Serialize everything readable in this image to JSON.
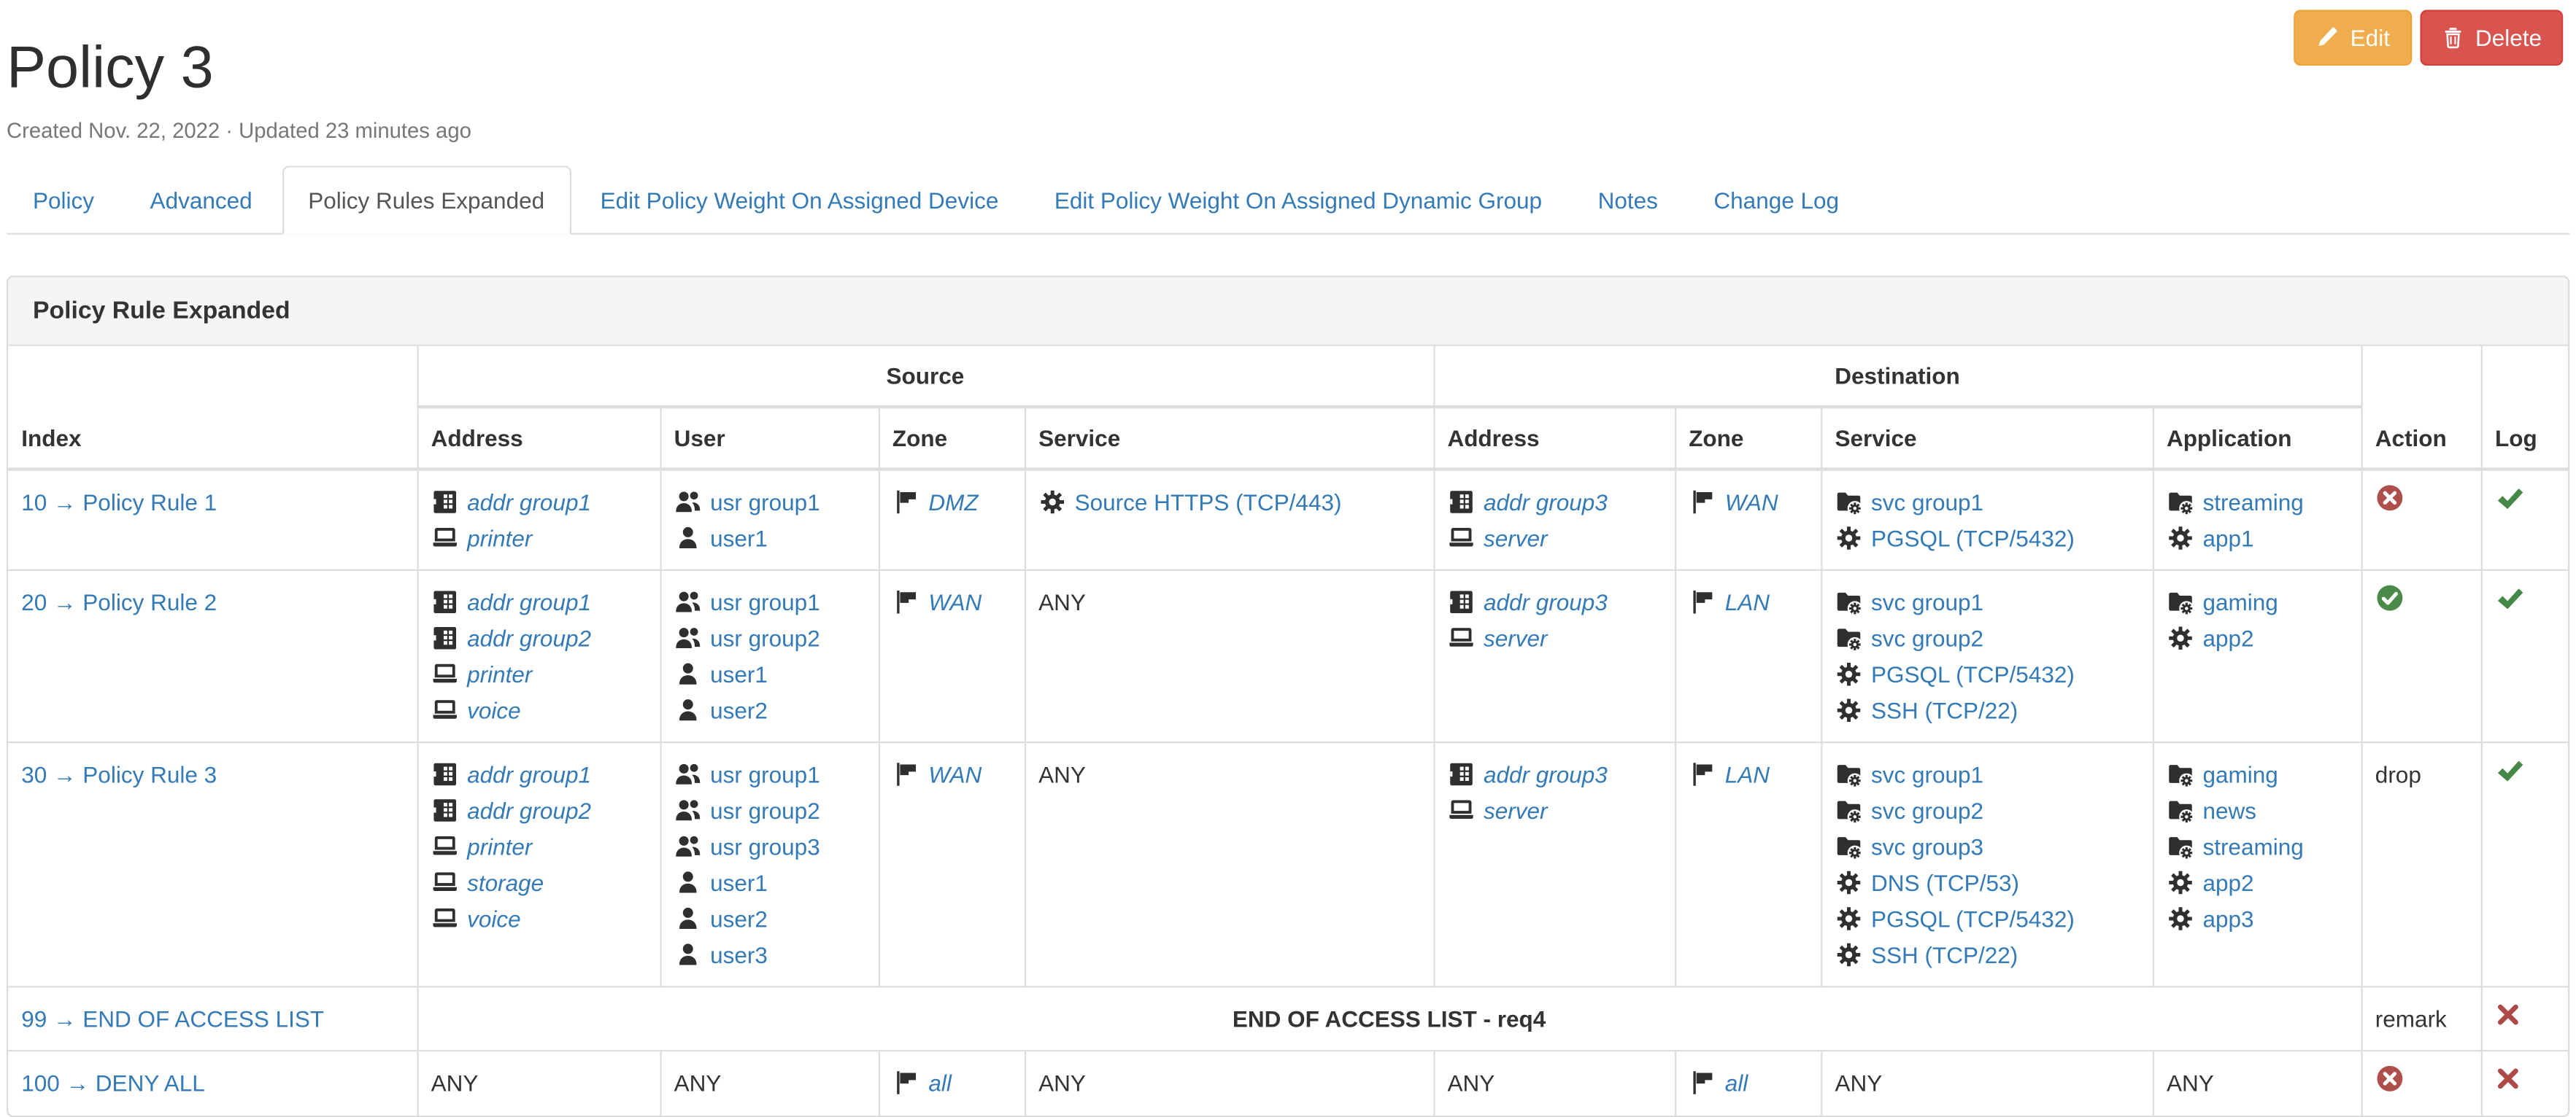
{
  "header": {
    "title": "Policy 3",
    "subtitle": "Created Nov. 22, 2022 · Updated 23 minutes ago",
    "edit_label": "Edit",
    "delete_label": "Delete"
  },
  "tabs": [
    {
      "label": "Policy",
      "active": false
    },
    {
      "label": "Advanced",
      "active": false
    },
    {
      "label": "Policy Rules Expanded",
      "active": true
    },
    {
      "label": "Edit Policy Weight On Assigned Device",
      "active": false
    },
    {
      "label": "Edit Policy Weight On Assigned Dynamic Group",
      "active": false
    },
    {
      "label": "Notes",
      "active": false
    },
    {
      "label": "Change Log",
      "active": false
    }
  ],
  "panel": {
    "title": "Policy Rule Expanded"
  },
  "table": {
    "group_headers": {
      "source": "Source",
      "destination": "Destination"
    },
    "corner_headers": {
      "index": "Index",
      "action": "Action",
      "log": "Log"
    },
    "source_columns": [
      "Address",
      "User",
      "Zone",
      "Service"
    ],
    "destination_columns": [
      "Address",
      "Zone",
      "Service",
      "Application"
    ],
    "rows": [
      {
        "type": "rule",
        "index_label": "10 → Policy Rule 1",
        "src_address": [
          {
            "t": "addr-group",
            "label": "addr group1"
          },
          {
            "t": "host",
            "label": "printer"
          }
        ],
        "src_user": [
          {
            "t": "user-group",
            "label": "usr group1"
          },
          {
            "t": "user",
            "label": "user1"
          }
        ],
        "src_zone": [
          {
            "t": "zone",
            "label": "DMZ"
          }
        ],
        "src_service": [
          {
            "t": "service",
            "label": "Source HTTPS (TCP/443)"
          }
        ],
        "dst_address": [
          {
            "t": "addr-group",
            "label": "addr group3"
          },
          {
            "t": "host",
            "label": "server"
          }
        ],
        "dst_zone": [
          {
            "t": "zone",
            "label": "WAN"
          }
        ],
        "dst_service": [
          {
            "t": "svc-group",
            "label": "svc group1"
          },
          {
            "t": "service",
            "label": "PGSQL (TCP/5432)"
          }
        ],
        "application": [
          {
            "t": "app-group",
            "label": "streaming"
          },
          {
            "t": "app",
            "label": "app1"
          }
        ],
        "action": {
          "kind": "deny"
        },
        "log": {
          "kind": "yes"
        }
      },
      {
        "type": "rule",
        "index_label": "20 → Policy Rule 2",
        "src_address": [
          {
            "t": "addr-group",
            "label": "addr group1"
          },
          {
            "t": "addr-group",
            "label": "addr group2"
          },
          {
            "t": "host",
            "label": "printer"
          },
          {
            "t": "host",
            "label": "voice"
          }
        ],
        "src_user": [
          {
            "t": "user-group",
            "label": "usr group1"
          },
          {
            "t": "user-group",
            "label": "usr group2"
          },
          {
            "t": "user",
            "label": "user1"
          },
          {
            "t": "user",
            "label": "user2"
          }
        ],
        "src_zone": [
          {
            "t": "zone",
            "label": "WAN"
          }
        ],
        "src_service": [
          {
            "t": "any"
          }
        ],
        "dst_address": [
          {
            "t": "addr-group",
            "label": "addr group3"
          },
          {
            "t": "host",
            "label": "server"
          }
        ],
        "dst_zone": [
          {
            "t": "zone",
            "label": "LAN"
          }
        ],
        "dst_service": [
          {
            "t": "svc-group",
            "label": "svc group1"
          },
          {
            "t": "svc-group",
            "label": "svc group2"
          },
          {
            "t": "service",
            "label": "PGSQL (TCP/5432)"
          },
          {
            "t": "service",
            "label": "SSH (TCP/22)"
          }
        ],
        "application": [
          {
            "t": "app-group",
            "label": "gaming"
          },
          {
            "t": "app",
            "label": "app2"
          }
        ],
        "action": {
          "kind": "accept"
        },
        "log": {
          "kind": "yes"
        }
      },
      {
        "type": "rule",
        "index_label": "30 → Policy Rule 3",
        "src_address": [
          {
            "t": "addr-group",
            "label": "addr group1"
          },
          {
            "t": "addr-group",
            "label": "addr group2"
          },
          {
            "t": "host",
            "label": "printer"
          },
          {
            "t": "host",
            "label": "storage"
          },
          {
            "t": "host",
            "label": "voice"
          }
        ],
        "src_user": [
          {
            "t": "user-group",
            "label": "usr group1"
          },
          {
            "t": "user-group",
            "label": "usr group2"
          },
          {
            "t": "user-group",
            "label": "usr group3"
          },
          {
            "t": "user",
            "label": "user1"
          },
          {
            "t": "user",
            "label": "user2"
          },
          {
            "t": "user",
            "label": "user3"
          }
        ],
        "src_zone": [
          {
            "t": "zone",
            "label": "WAN"
          }
        ],
        "src_service": [
          {
            "t": "any"
          }
        ],
        "dst_address": [
          {
            "t": "addr-group",
            "label": "addr group3"
          },
          {
            "t": "host",
            "label": "server"
          }
        ],
        "dst_zone": [
          {
            "t": "zone",
            "label": "LAN"
          }
        ],
        "dst_service": [
          {
            "t": "svc-group",
            "label": "svc group1"
          },
          {
            "t": "svc-group",
            "label": "svc group2"
          },
          {
            "t": "svc-group",
            "label": "svc group3"
          },
          {
            "t": "service",
            "label": "DNS (TCP/53)"
          },
          {
            "t": "service",
            "label": "PGSQL (TCP/5432)"
          },
          {
            "t": "service",
            "label": "SSH (TCP/22)"
          }
        ],
        "application": [
          {
            "t": "app-group",
            "label": "gaming"
          },
          {
            "t": "app-group",
            "label": "news"
          },
          {
            "t": "app-group",
            "label": "streaming"
          },
          {
            "t": "app",
            "label": "app2"
          },
          {
            "t": "app",
            "label": "app3"
          }
        ],
        "action": {
          "kind": "text",
          "label": "drop"
        },
        "log": {
          "kind": "yes"
        }
      },
      {
        "type": "note",
        "index_label": "99 → END OF ACCESS LIST",
        "note": "END OF ACCESS LIST - req4",
        "action": {
          "kind": "text",
          "label": "remark"
        },
        "log": {
          "kind": "no"
        }
      },
      {
        "type": "rule",
        "index_label": "100 → DENY ALL",
        "src_address": [
          {
            "t": "any"
          }
        ],
        "src_user": [
          {
            "t": "any"
          }
        ],
        "src_zone": [
          {
            "t": "zone",
            "label": "all"
          }
        ],
        "src_service": [
          {
            "t": "any"
          }
        ],
        "dst_address": [
          {
            "t": "any"
          }
        ],
        "dst_zone": [
          {
            "t": "zone",
            "label": "all"
          }
        ],
        "dst_service": [
          {
            "t": "any"
          }
        ],
        "application": [
          {
            "t": "any"
          }
        ],
        "action": {
          "kind": "deny"
        },
        "log": {
          "kind": "no"
        }
      }
    ],
    "any_label": "ANY"
  },
  "colors": {
    "link": "#337ab7",
    "icon": "#2f2f2f",
    "action_deny": "#ae4f4b",
    "action_accept": "#4a8b4a",
    "log_yes": "#468847",
    "log_no": "#ad4a47",
    "edit_button": "#f0ad4e",
    "delete_button": "#d9534f"
  }
}
